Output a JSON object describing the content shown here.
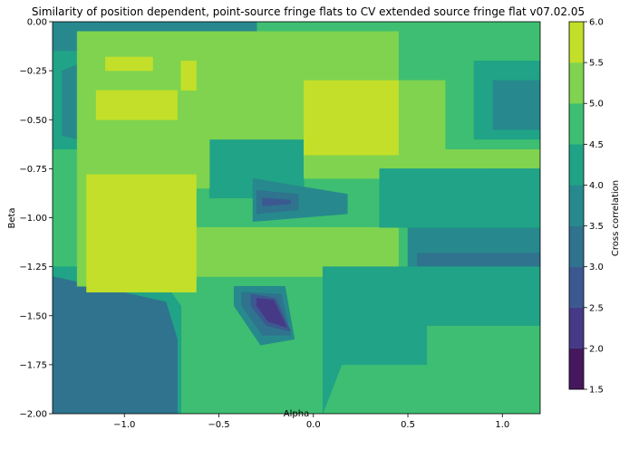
{
  "chart_data": {
    "type": "contour",
    "title": "Similarity of position dependent, point-source fringe flats to CV extended source fringe flat v07.02.05",
    "xlabel": "Alpha",
    "ylabel": "Beta",
    "xlim": [
      -1.38,
      1.2
    ],
    "ylim": [
      -2.0,
      0.0
    ],
    "x_ticks": [
      -1.0,
      -0.5,
      0.0,
      0.5,
      1.0
    ],
    "x_tick_labels": [
      "−1.0",
      "−0.5",
      "0.0",
      "0.5",
      "1.0"
    ],
    "y_ticks": [
      0.0,
      -0.25,
      -0.5,
      -0.75,
      -1.0,
      -1.25,
      -1.5,
      -1.75,
      -2.0
    ],
    "y_tick_labels": [
      "0.00",
      "−0.25",
      "−0.50",
      "−0.75",
      "−1.00",
      "−1.25",
      "−1.50",
      "−1.75",
      "−2.00"
    ],
    "colorbar": {
      "label": "Cross correlation",
      "levels": [
        1.5,
        2.0,
        2.5,
        3.0,
        3.5,
        4.0,
        4.5,
        5.0,
        5.5,
        6.0
      ],
      "tick_labels": [
        "1.5",
        "2.0",
        "2.5",
        "3.0",
        "3.5",
        "4.0",
        "4.5",
        "5.0",
        "5.5",
        "6.0"
      ],
      "colors": [
        "#45185e",
        "#463a87",
        "#3b5990",
        "#2f738e",
        "#27898d",
        "#20a386",
        "#3ebe72",
        "#7fd34f",
        "#c3df29",
        "#dfe318"
      ]
    },
    "regions": [
      {
        "level": 4.5,
        "polygon": [
          [
            -1.38,
            0
          ],
          [
            1.2,
            0
          ],
          [
            1.2,
            -2
          ],
          [
            -1.38,
            -2
          ]
        ]
      },
      {
        "level": 3.5,
        "polygon": [
          [
            -1.38,
            0
          ],
          [
            -0.3,
            0
          ],
          [
            -0.3,
            -0.15
          ],
          [
            -1.38,
            -0.15
          ]
        ]
      },
      {
        "level": 4.0,
        "polygon": [
          [
            -1.38,
            -1.25
          ],
          [
            -0.85,
            -1.25
          ],
          [
            -0.7,
            -1.45
          ],
          [
            -0.7,
            -2
          ],
          [
            -1.38,
            -2
          ]
        ]
      },
      {
        "level": 3.0,
        "polygon": [
          [
            -1.38,
            -1.3
          ],
          [
            -0.78,
            -1.43
          ],
          [
            -0.72,
            -1.62
          ],
          [
            -0.72,
            -2
          ],
          [
            -1.38,
            -2
          ]
        ]
      },
      {
        "level": 3.5,
        "polygon": [
          [
            0.5,
            -1.05
          ],
          [
            1.2,
            -1.05
          ],
          [
            1.2,
            -1.45
          ],
          [
            0.5,
            -1.45
          ]
        ]
      },
      {
        "level": 3.0,
        "polygon": [
          [
            0.55,
            -1.18
          ],
          [
            1.2,
            -1.18
          ],
          [
            1.2,
            -1.38
          ],
          [
            0.55,
            -1.38
          ]
        ]
      },
      {
        "level": 4.0,
        "polygon": [
          [
            -0.55,
            -0.6
          ],
          [
            -0.05,
            -0.6
          ],
          [
            -0.05,
            -0.9
          ],
          [
            -0.55,
            -0.9
          ]
        ]
      },
      {
        "level": 3.5,
        "polygon": [
          [
            -0.32,
            -0.8
          ],
          [
            0.18,
            -0.88
          ],
          [
            0.18,
            -0.98
          ],
          [
            -0.32,
            -1.02
          ]
        ]
      },
      {
        "level": 3.0,
        "polygon": [
          [
            -0.3,
            -0.86
          ],
          [
            -0.08,
            -0.88
          ],
          [
            -0.08,
            -0.96
          ],
          [
            -0.3,
            -0.98
          ]
        ]
      },
      {
        "level": 2.5,
        "polygon": [
          [
            -0.27,
            -0.9
          ],
          [
            -0.12,
            -0.91
          ],
          [
            -0.12,
            -0.93
          ],
          [
            -0.27,
            -0.94
          ]
        ]
      },
      {
        "level": 3.5,
        "polygon": [
          [
            -0.42,
            -1.35
          ],
          [
            -0.15,
            -1.35
          ],
          [
            -0.1,
            -1.62
          ],
          [
            -0.28,
            -1.65
          ],
          [
            -0.42,
            -1.45
          ]
        ]
      },
      {
        "level": 3.0,
        "polygon": [
          [
            -0.38,
            -1.38
          ],
          [
            -0.17,
            -1.39
          ],
          [
            -0.12,
            -1.6
          ],
          [
            -0.27,
            -1.6
          ],
          [
            -0.38,
            -1.45
          ]
        ]
      },
      {
        "level": 2.5,
        "polygon": [
          [
            -0.33,
            -1.39
          ],
          [
            -0.2,
            -1.41
          ],
          [
            -0.12,
            -1.58
          ],
          [
            -0.25,
            -1.55
          ],
          [
            -0.33,
            -1.45
          ]
        ]
      },
      {
        "level": 2.0,
        "polygon": [
          [
            -0.3,
            -1.41
          ],
          [
            -0.21,
            -1.42
          ],
          [
            -0.14,
            -1.56
          ],
          [
            -0.24,
            -1.53
          ],
          [
            -0.3,
            -1.45
          ]
        ]
      },
      {
        "level": 4.0,
        "polygon": [
          [
            -1.38,
            -0.15
          ],
          [
            -1.25,
            -0.15
          ],
          [
            -1.25,
            -0.65
          ],
          [
            -1.38,
            -0.65
          ]
        ]
      },
      {
        "level": 3.5,
        "polygon": [
          [
            -1.33,
            -0.25
          ],
          [
            -1.25,
            -0.22
          ],
          [
            -1.25,
            -0.6
          ],
          [
            -1.33,
            -0.58
          ]
        ]
      },
      {
        "level": 5.0,
        "polygon": [
          [
            -1.25,
            -0.05
          ],
          [
            0.45,
            -0.05
          ],
          [
            0.45,
            -0.3
          ],
          [
            1.2,
            -0.3
          ],
          [
            1.2,
            -0.75
          ],
          [
            0.95,
            -0.75
          ],
          [
            0.95,
            -0.8
          ],
          [
            -0.05,
            -0.8
          ],
          [
            -0.05,
            -0.6
          ],
          [
            -0.55,
            -0.6
          ],
          [
            -0.55,
            -0.85
          ],
          [
            -0.62,
            -0.85
          ],
          [
            -0.62,
            -1.35
          ],
          [
            -1.25,
            -1.35
          ]
        ]
      },
      {
        "level": 5.0,
        "polygon": [
          [
            -0.62,
            -1.05
          ],
          [
            0.45,
            -1.05
          ],
          [
            0.45,
            -1.3
          ],
          [
            -0.62,
            -1.3
          ]
        ]
      },
      {
        "level": 4.5,
        "polygon": [
          [
            0.7,
            0
          ],
          [
            1.2,
            0
          ],
          [
            1.2,
            -0.65
          ],
          [
            0.7,
            -0.65
          ]
        ]
      },
      {
        "level": 4.0,
        "polygon": [
          [
            0.85,
            -0.2
          ],
          [
            1.2,
            -0.2
          ],
          [
            1.2,
            -0.6
          ],
          [
            0.85,
            -0.6
          ]
        ]
      },
      {
        "level": 3.5,
        "polygon": [
          [
            0.95,
            -0.3
          ],
          [
            1.2,
            -0.3
          ],
          [
            1.2,
            -0.55
          ],
          [
            0.95,
            -0.55
          ]
        ]
      },
      {
        "level": 5.5,
        "polygon": [
          [
            -1.1,
            -0.18
          ],
          [
            -0.85,
            -0.18
          ],
          [
            -0.85,
            -0.25
          ],
          [
            -1.1,
            -0.25
          ]
        ]
      },
      {
        "level": 5.5,
        "polygon": [
          [
            -1.15,
            -0.35
          ],
          [
            -0.72,
            -0.35
          ],
          [
            -0.72,
            -0.5
          ],
          [
            -1.15,
            -0.5
          ]
        ]
      },
      {
        "level": 5.5,
        "polygon": [
          [
            -0.7,
            -0.2
          ],
          [
            -0.62,
            -0.2
          ],
          [
            -0.62,
            -0.35
          ],
          [
            -0.7,
            -0.35
          ]
        ]
      },
      {
        "level": 5.5,
        "polygon": [
          [
            -0.05,
            -0.3
          ],
          [
            0.45,
            -0.3
          ],
          [
            0.45,
            -0.68
          ],
          [
            -0.05,
            -0.68
          ]
        ]
      },
      {
        "level": 5.5,
        "polygon": [
          [
            -1.2,
            -0.78
          ],
          [
            -0.62,
            -0.78
          ],
          [
            -0.62,
            -1.38
          ],
          [
            -1.2,
            -1.38
          ]
        ]
      },
      {
        "level": 4.0,
        "polygon": [
          [
            0.05,
            -1.25
          ],
          [
            1.2,
            -1.25
          ],
          [
            1.2,
            -1.55
          ],
          [
            0.6,
            -1.55
          ],
          [
            0.6,
            -1.75
          ],
          [
            0.15,
            -1.75
          ],
          [
            0.05,
            -2
          ],
          [
            0.05,
            -1.25
          ]
        ]
      },
      {
        "level": 4.0,
        "polygon": [
          [
            0.35,
            -0.75
          ],
          [
            1.2,
            -0.75
          ],
          [
            1.2,
            -1.05
          ],
          [
            0.35,
            -1.05
          ]
        ]
      },
      {
        "level": 4.5,
        "polygon": [
          [
            0.95,
            -1.75
          ],
          [
            1.2,
            -1.75
          ],
          [
            1.2,
            -1.9
          ],
          [
            0.95,
            -1.9
          ]
        ]
      }
    ]
  }
}
